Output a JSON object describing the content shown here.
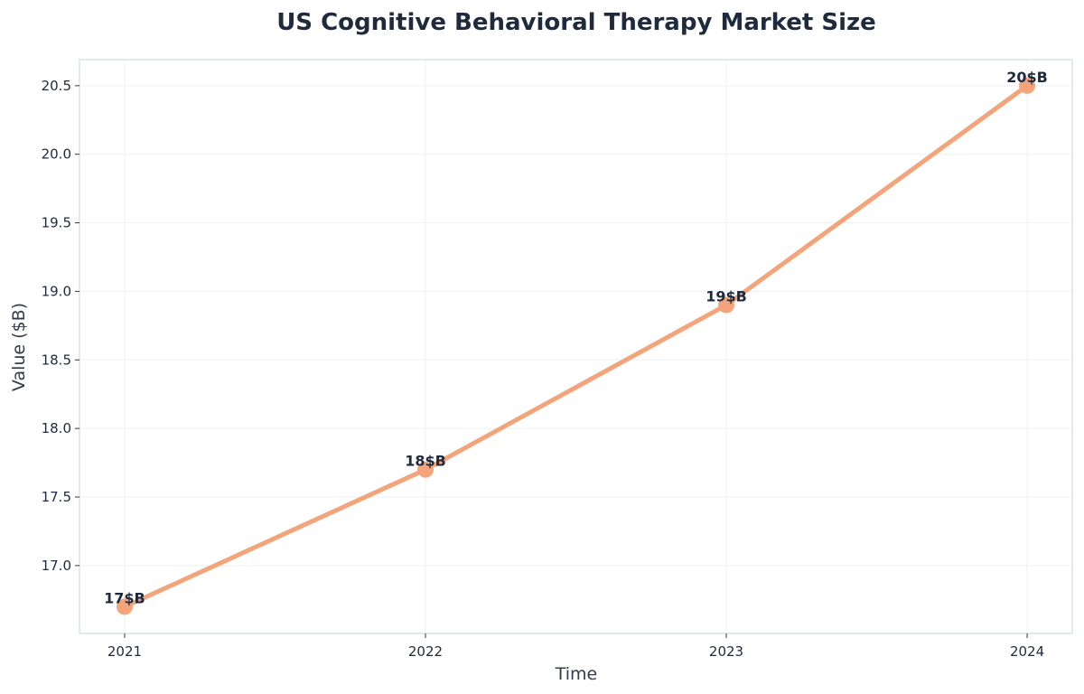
{
  "chart_data": {
    "type": "line",
    "title": "US Cognitive Behavioral Therapy Market Size",
    "xlabel": "Time",
    "ylabel": "Value ($B)",
    "x": [
      2021,
      2022,
      2023,
      2024
    ],
    "x_tick_labels": [
      "2021",
      "2022",
      "2023",
      "2024"
    ],
    "series": [
      {
        "values": [
          16.7,
          17.7,
          18.9,
          20.5
        ],
        "data_labels": [
          "17$B",
          "18$B",
          "19$B",
          "20$B"
        ]
      }
    ],
    "y_ticks": [
      17.0,
      17.5,
      18.0,
      18.5,
      19.0,
      19.5,
      20.0,
      20.5
    ],
    "y_tick_labels": [
      "17.0",
      "17.5",
      "18.0",
      "18.5",
      "19.0",
      "19.5",
      "20.0",
      "20.5"
    ],
    "xlim": [
      2020.85,
      2024.15
    ],
    "ylim": [
      16.505,
      20.69
    ],
    "grid": true,
    "legend": "none",
    "colors": {
      "line": "#f4a47a",
      "text": "#1f2a3c",
      "grid": "#eef2f3",
      "spine": "#d9e3e6"
    }
  }
}
